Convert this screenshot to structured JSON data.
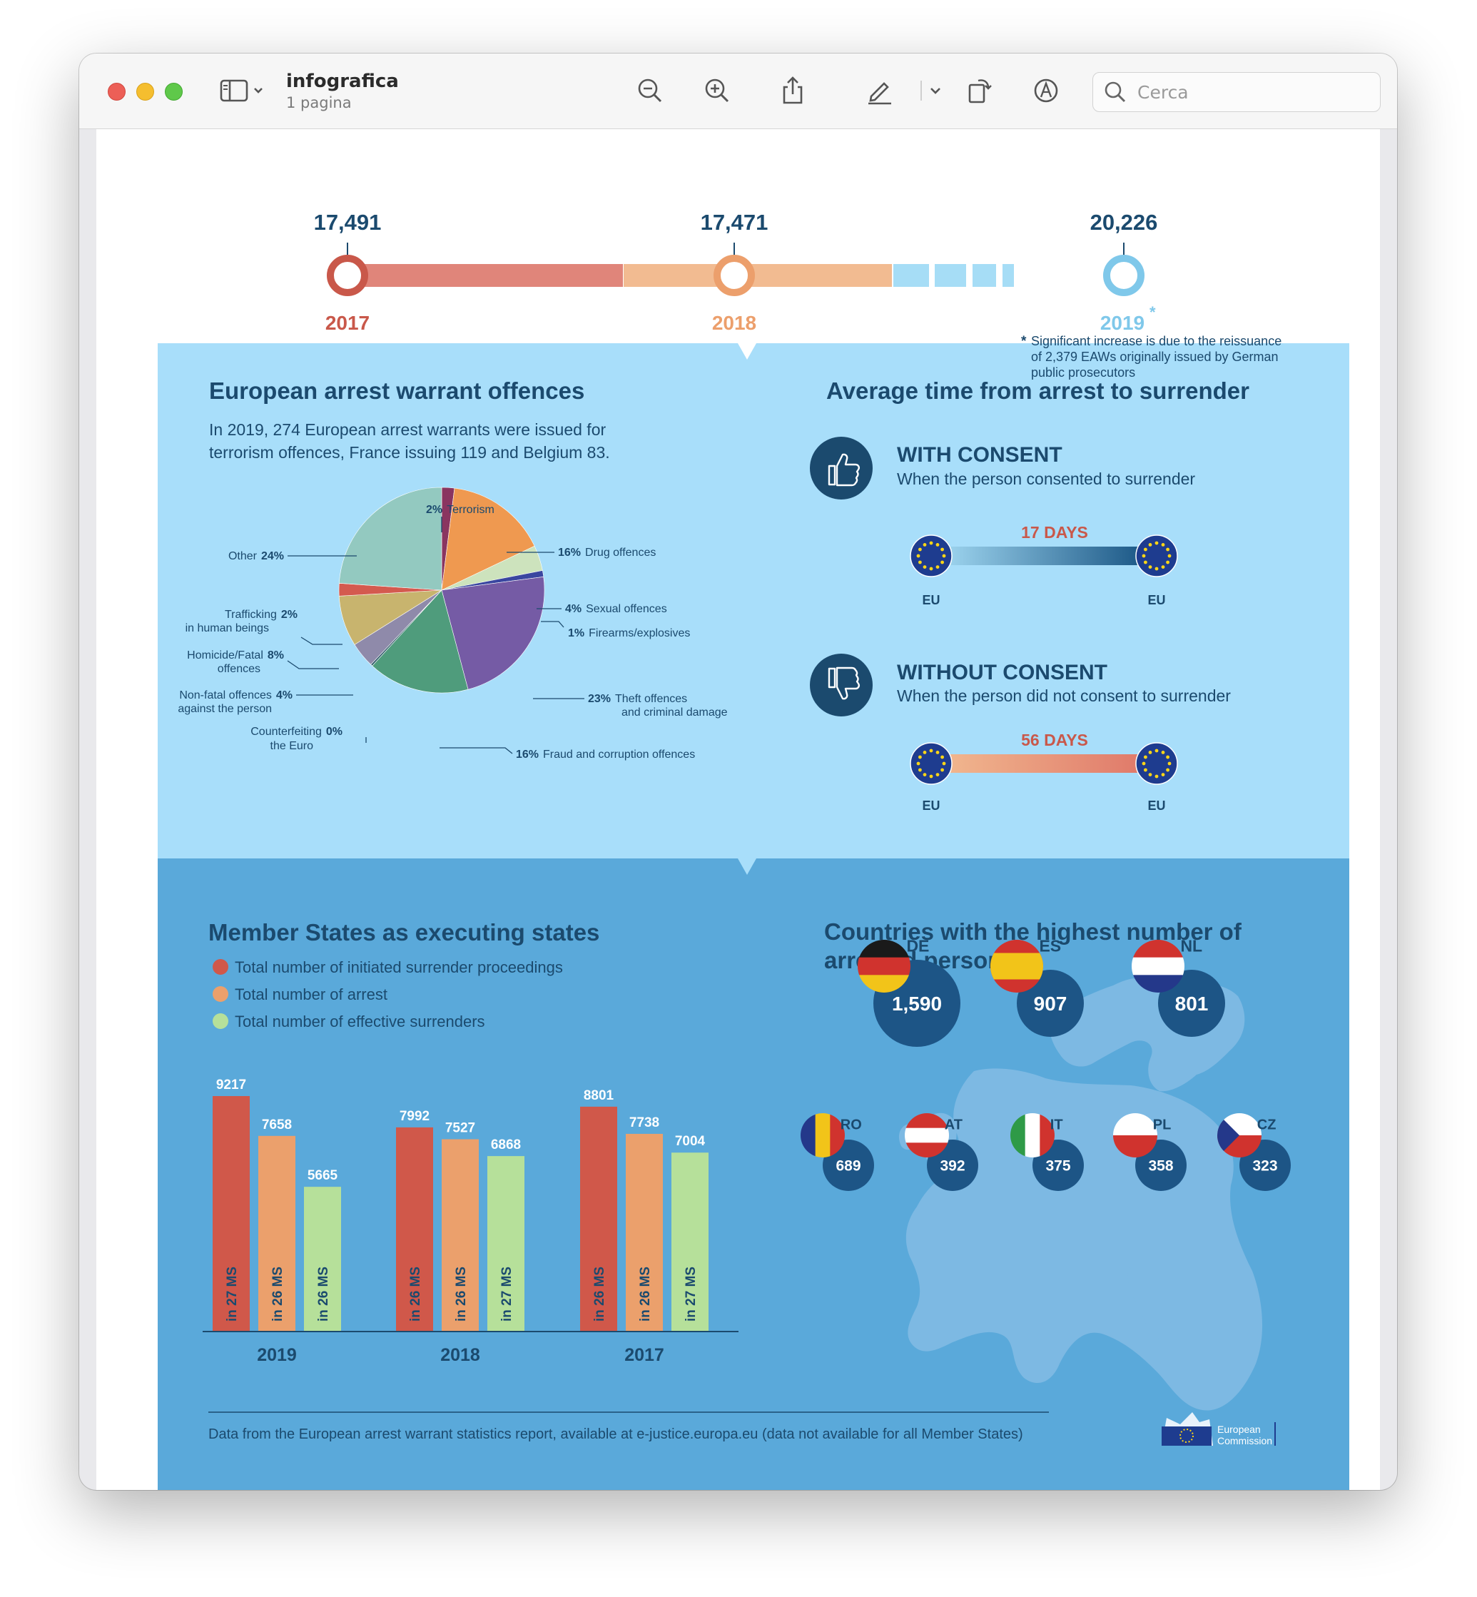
{
  "window": {
    "title": "infografica",
    "subtitle": "1 pagina",
    "search_placeholder": "Cerca"
  },
  "timeline": {
    "points": [
      {
        "value": "17,491",
        "year": "2017"
      },
      {
        "value": "17,471",
        "year": "2018"
      },
      {
        "value": "20,226",
        "year": "2019"
      }
    ],
    "asterisk": "*",
    "note": [
      "Significant increase is due to the reissuance",
      "of 2,379 EAWs originally issued by German",
      "public prosecutors"
    ]
  },
  "offences": {
    "title": "European arrest warrant offences",
    "intro": [
      "In 2019, 274 European arrest warrants were issued for",
      "terrorism offences, France issuing 119 and Belgium 83."
    ],
    "chart_data": {
      "type": "pie",
      "slices": [
        {
          "label": "Terrorism",
          "pct": "2%",
          "value": 2,
          "color": "#8a3560"
        },
        {
          "label": "Drug offences",
          "pct": "16%",
          "value": 16,
          "color": "#ef9950"
        },
        {
          "label": "Sexual offences",
          "pct": "4%",
          "value": 4,
          "color": "#cde3bd"
        },
        {
          "label": "Firearms/explosives",
          "pct": "1%",
          "value": 1,
          "color": "#3a46a0"
        },
        {
          "label": "Theft offences and criminal damage",
          "pct": "23%",
          "value": 23,
          "color": "#755ba5"
        },
        {
          "label": "Fraud and corruption offences",
          "pct": "16%",
          "value": 16,
          "color": "#4f9c7c"
        },
        {
          "label": "Counterfeiting the Euro",
          "pct": "0%",
          "value": 0.3,
          "color": "#2f5a6a"
        },
        {
          "label": "Non-fatal offences against the person",
          "pct": "4%",
          "value": 4,
          "color": "#8f8aaa"
        },
        {
          "label": "Homicide/Fatal offences",
          "pct": "8%",
          "value": 8,
          "color": "#c8b46e"
        },
        {
          "label": "Trafficking in human beings",
          "pct": "2%",
          "value": 2,
          "color": "#d45a4f"
        },
        {
          "label": "Other",
          "pct": "24%",
          "value": 24,
          "color": "#93c9c0"
        }
      ]
    },
    "labels": {
      "terrorism": "Terrorism",
      "drug": "Drug offences",
      "sexual": "Sexual offences",
      "firearms": "Firearms/explosives",
      "theft1": "Theft offences",
      "theft2": "and criminal damage",
      "fraud": "Fraud and corruption offences",
      "counterfeit1": "Counterfeiting",
      "counterfeit2": "the Euro",
      "nonfatal1": "Non-fatal offences",
      "nonfatal2": "against the person",
      "homicide1": "Homicide/Fatal",
      "homicide2": "offences",
      "trafficking1": "Trafficking",
      "trafficking2": "in human beings",
      "other": "Other"
    }
  },
  "surrender": {
    "title": "Average time from arrest to surrender",
    "consent": {
      "heading": "WITH CONSENT",
      "desc": "When the person consented to surrender",
      "days": "17 DAYS"
    },
    "no_consent": {
      "heading": "WITHOUT CONSENT",
      "desc": "When the person did not consent to surrender",
      "days": "56 DAYS"
    },
    "eu": "EU"
  },
  "executing": {
    "title": "Member States as executing states",
    "legend": [
      "Total number of initiated surrender proceedings",
      "Total number of arrest",
      "Total number of effective surrenders"
    ],
    "chart_data": {
      "type": "bar",
      "categories": [
        "2019",
        "2018",
        "2017"
      ],
      "series": [
        {
          "name": "Total number of initiated surrender proceedings",
          "values": [
            9217,
            7992,
            8801
          ],
          "notes": [
            "in 27 MS",
            "in 26 MS",
            "in 26 MS"
          ],
          "color": "#d0584a"
        },
        {
          "name": "Total number of arrest",
          "values": [
            7658,
            7527,
            7738
          ],
          "notes": [
            "in 26 MS",
            "in 26 MS",
            "in 26 MS"
          ],
          "color": "#eba06c"
        },
        {
          "name": "Total number of effective surrenders",
          "values": [
            5665,
            6868,
            7004
          ],
          "notes": [
            "in 26 MS",
            "in 27 MS",
            "in 27 MS"
          ],
          "color": "#b6e09a"
        }
      ]
    }
  },
  "countries": {
    "title": [
      "Countries with the highest number of",
      "arrested persons"
    ],
    "items": [
      {
        "code": "DE",
        "value": "1,590"
      },
      {
        "code": "ES",
        "value": "907"
      },
      {
        "code": "NL",
        "value": "801"
      },
      {
        "code": "RO",
        "value": "689"
      },
      {
        "code": "AT",
        "value": "392"
      },
      {
        "code": "IT",
        "value": "375"
      },
      {
        "code": "PL",
        "value": "358"
      },
      {
        "code": "CZ",
        "value": "323"
      }
    ]
  },
  "footer": {
    "source": "Data from the European arrest warrant statistics report, available at e-justice.europa.eu (data not available for all Member States)",
    "logo": [
      "European",
      "Commission"
    ]
  }
}
